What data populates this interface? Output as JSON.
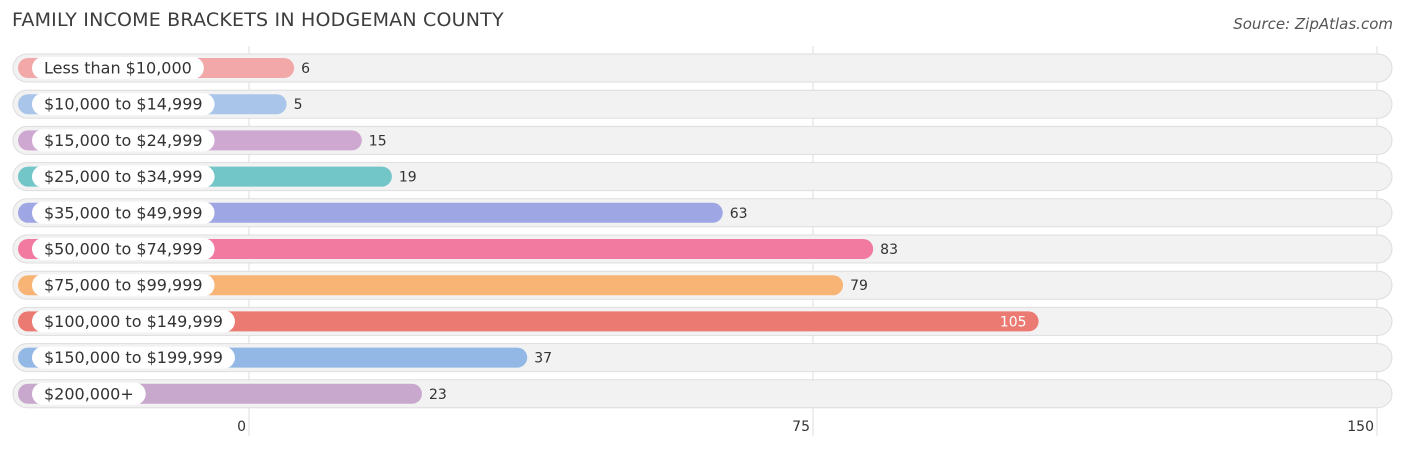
{
  "header": {
    "title": "FAMILY INCOME BRACKETS IN HODGEMAN COUNTY",
    "source": "Source: ZipAtlas.com"
  },
  "chart_data": {
    "type": "bar",
    "orientation": "horizontal",
    "title": "FAMILY INCOME BRACKETS IN HODGEMAN COUNTY",
    "xlabel": "",
    "ylabel": "",
    "xlim": [
      0,
      150
    ],
    "ticks": [
      0,
      75,
      150
    ],
    "tick_labels": [
      "0",
      "75",
      "150"
    ],
    "grid": true,
    "categories": [
      "Less than $10,000",
      "$10,000 to $14,999",
      "$15,000 to $24,999",
      "$25,000 to $34,999",
      "$35,000 to $49,999",
      "$50,000 to $74,999",
      "$75,000 to $99,999",
      "$100,000 to $149,999",
      "$150,000 to $199,999",
      "$200,000+"
    ],
    "values": [
      6,
      5,
      15,
      19,
      63,
      83,
      79,
      105,
      37,
      23
    ],
    "value_labels": [
      "6",
      "5",
      "15",
      "19",
      "63",
      "83",
      "79",
      "105",
      "37",
      "23"
    ],
    "colors": [
      "#f2a8a8",
      "#a9c5ea",
      "#cfa8d2",
      "#72c6c8",
      "#9ea6e4",
      "#f27aa0",
      "#f8b475",
      "#ea7a72",
      "#93b8e6",
      "#c8a8cc"
    ]
  }
}
